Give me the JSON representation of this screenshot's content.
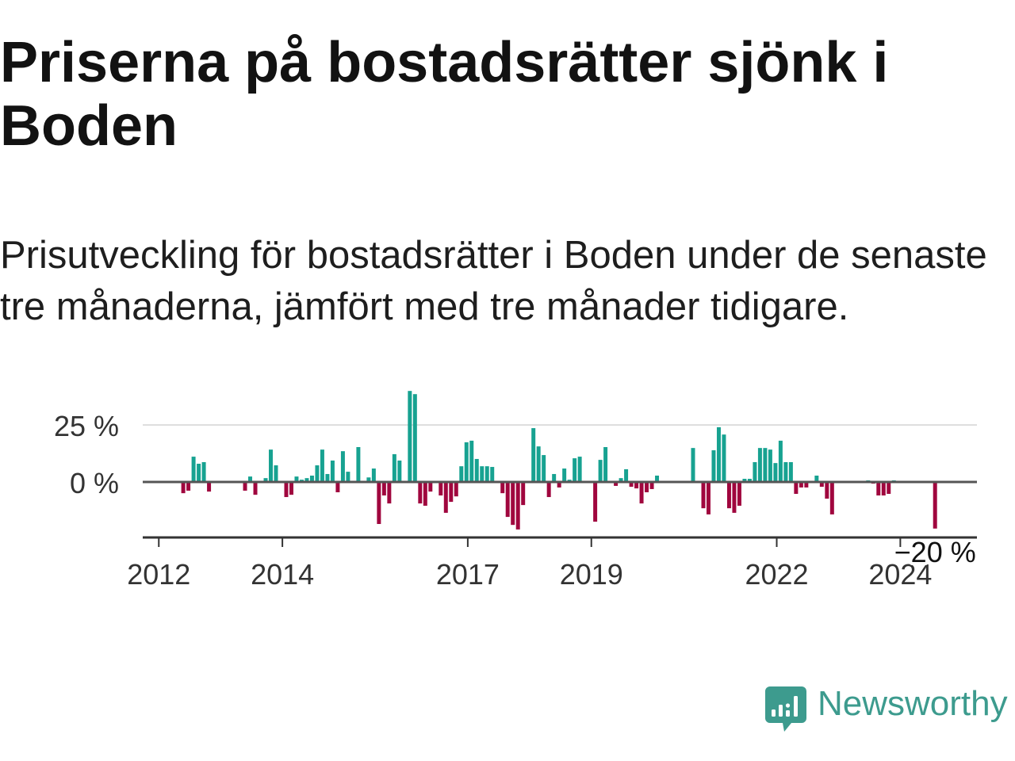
{
  "chart_data": {
    "type": "bar",
    "title": "Priserna på bostadsrätter sjönk i Boden",
    "subtitle": "Prisutveckling för bostadsrätter i Boden under de senaste tre månaderna, jämfört med tre månader tidigare.",
    "xlim": [
      2011.74,
      2025.24
    ],
    "ylim": [
      -24.3,
      41
    ],
    "grid": true,
    "x_ticks": [
      {
        "value": 2012,
        "label": "2012"
      },
      {
        "value": 2014,
        "label": "2014"
      },
      {
        "value": 2017,
        "label": "2017"
      },
      {
        "value": 2019,
        "label": "2019"
      },
      {
        "value": 2022,
        "label": "2022"
      },
      {
        "value": 2024,
        "label": "2024"
      }
    ],
    "y_ticks": [
      {
        "value": 25,
        "label": "25 %"
      },
      {
        "value": 0,
        "label": "0 %"
      }
    ],
    "monthly_values": {
      "2012": [
        null,
        null,
        null,
        null,
        -4.9,
        -3.8,
        11.1,
        8.0,
        8.7,
        -4.2,
        null,
        null
      ],
      "2013": [
        null,
        null,
        null,
        null,
        -3.8,
        2.4,
        -5.6,
        null,
        1.7,
        14.2,
        7.3,
        null
      ],
      "2014": [
        -6.6,
        -5.6,
        2.4,
        1.0,
        1.7,
        2.8,
        7.3,
        14.2,
        3.5,
        9.4,
        -4.5,
        13.5
      ],
      "2015": [
        4.5,
        null,
        15.3,
        null,
        2.0,
        5.9,
        -18.4,
        -5.9,
        -9.4,
        12.2,
        9.4,
        null
      ],
      "2016": [
        39.9,
        38.5,
        -9.4,
        -10.4,
        -4.2,
        null,
        -5.9,
        -13.5,
        -8.7,
        -6.3,
        6.9,
        17.4
      ],
      "2017": [
        18.1,
        10.1,
        6.9,
        6.9,
        6.6,
        null,
        -4.9,
        -15.3,
        -18.8,
        -20.8,
        -10.1,
        null
      ],
      "2018": [
        23.6,
        15.6,
        11.8,
        -6.6,
        3.5,
        -2.4,
        5.9,
        1.0,
        10.4,
        11.1,
        null,
        null
      ],
      "2019": [
        -17.4,
        9.7,
        15.3,
        null,
        -1.7,
        1.7,
        5.6,
        -2.1,
        -2.8,
        -9.4,
        -4.5,
        -3.1
      ],
      "2020": [
        2.8,
        null,
        null,
        null,
        null,
        null,
        null,
        14.9,
        null,
        -11.5,
        -14.2,
        13.9
      ],
      "2021": [
        24.0,
        20.8,
        -11.5,
        -13.5,
        -10.4,
        1.4,
        1.4,
        8.7,
        14.9,
        14.9,
        14.2,
        8.3
      ],
      "2022": [
        18.1,
        8.7,
        8.7,
        -5.2,
        -2.4,
        -2.4,
        null,
        2.8,
        -2.1,
        -7.3,
        -14.2,
        null
      ],
      "2023": [
        null,
        null,
        null,
        null,
        null,
        0.7,
        -0.7,
        -5.9,
        -5.9,
        -5.2,
        0.7,
        null
      ],
      "2024": [
        null,
        null,
        null,
        null,
        null,
        null,
        -20.4,
        null,
        null,
        null,
        null,
        null
      ]
    },
    "annotation": {
      "year": 2024,
      "month": 7,
      "value": -20.4,
      "label": "−20 %"
    },
    "colors": {
      "positive": "#17a291",
      "negative": "#a0063e",
      "grid": "#dddddd",
      "zero_line": "#555555",
      "axis": "#333333"
    }
  },
  "brand": {
    "name": "Newsworthy",
    "color": "#3d9b8e"
  }
}
